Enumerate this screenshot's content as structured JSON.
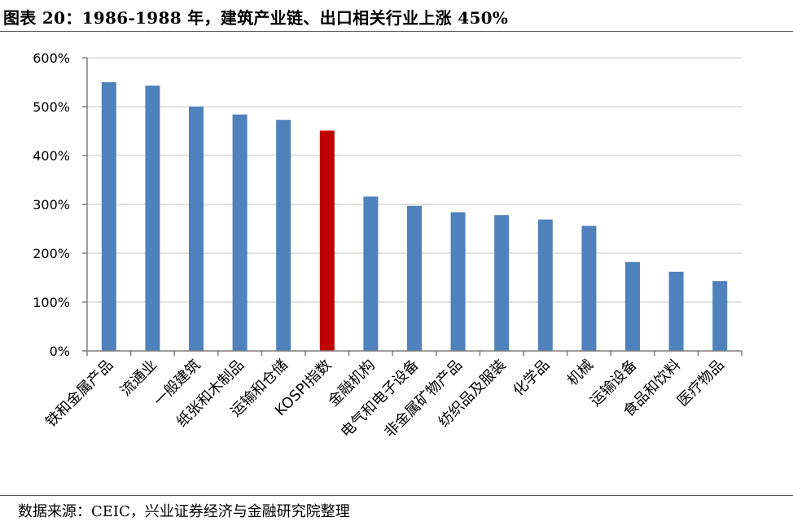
{
  "figure": {
    "title": "图表 20：1986-1988 年，建筑产业链、出口相关行业上涨 450%",
    "source": "数据来源：CEIC，兴业证券经济与金融研究院整理"
  },
  "chart_data": {
    "type": "bar",
    "title": "",
    "xlabel": "",
    "ylabel": "",
    "ylim": [
      0,
      600
    ],
    "y_ticks": [
      0,
      100,
      200,
      300,
      400,
      500,
      600
    ],
    "y_tick_labels": [
      "0%",
      "100%",
      "200%",
      "300%",
      "400%",
      "500%",
      "600%"
    ],
    "grid": true,
    "legend": "none",
    "categories": [
      "铁和金属产品",
      "流通业",
      "一般建筑",
      "纸张和木制品",
      "运输和仓储",
      "KOSPI指数",
      "金融机构",
      "电气和电子设备",
      "非金属矿物产品",
      "纺织品及服装",
      "化学品",
      "机械",
      "运输设备",
      "食品和饮料",
      "医疗物品"
    ],
    "values": [
      550,
      543,
      500,
      484,
      473,
      451,
      316,
      297,
      284,
      278,
      269,
      256,
      182,
      162,
      143
    ],
    "highlight_category": "KOSPI指数",
    "colors": {
      "bar": "#4F81BD",
      "highlight": "#C00000",
      "grid": "#D9D9D9",
      "axis": "#7F7F7F"
    }
  }
}
